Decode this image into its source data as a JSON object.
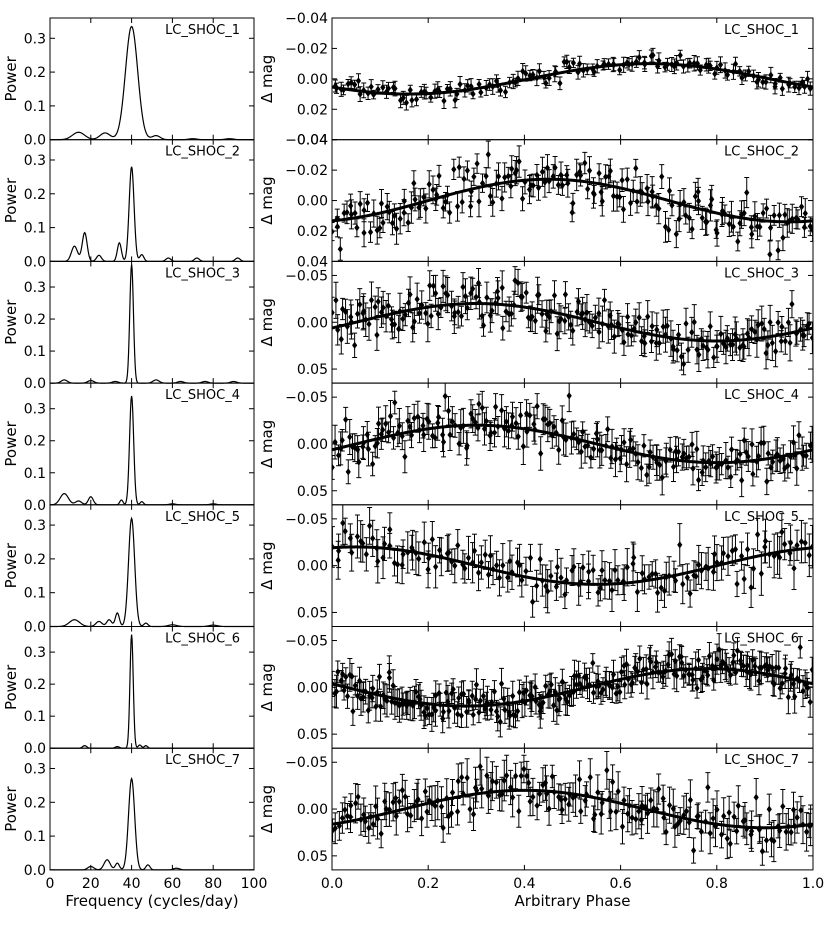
{
  "chart_data": [
    {
      "type": "line",
      "panel": "LC_SHOC_1",
      "xlabel": "",
      "ylabel": "Power",
      "xlim": [
        0,
        100
      ],
      "ylim": [
        0,
        0.36
      ],
      "yticks": [
        "0.0",
        "0.1",
        "0.2",
        "0.3"
      ],
      "peaks": [
        [
          40.0,
          0.335,
          3.0
        ],
        [
          14.0,
          0.022,
          3.0
        ],
        [
          27.0,
          0.02,
          2.5
        ],
        [
          52.0,
          0.012,
          2.0
        ],
        [
          70.0,
          0.003,
          2.0
        ],
        [
          88.0,
          0.003,
          2.0
        ]
      ]
    },
    {
      "type": "line",
      "panel": "LC_SHOC_2",
      "xlabel": "",
      "ylabel": "Power",
      "xlim": [
        0,
        100
      ],
      "ylim": [
        0,
        0.36
      ],
      "yticks": [
        "0.0",
        "0.1",
        "0.2",
        "0.3"
      ],
      "peaks": [
        [
          40.0,
          0.28,
          1.2
        ],
        [
          12.0,
          0.045,
          1.5
        ],
        [
          17.0,
          0.085,
          1.2
        ],
        [
          24.0,
          0.018,
          1.2
        ],
        [
          34.0,
          0.055,
          1.0
        ],
        [
          45.0,
          0.02,
          1.0
        ],
        [
          58.0,
          0.01,
          1.2
        ],
        [
          72.0,
          0.01,
          1.2
        ],
        [
          92.0,
          0.01,
          1.2
        ]
      ]
    },
    {
      "type": "line",
      "panel": "LC_SHOC_3",
      "xlabel": "",
      "ylabel": "Power",
      "xlim": [
        0,
        100
      ],
      "ylim": [
        0,
        0.38
      ],
      "yticks": [
        "0.0",
        "0.1",
        "0.2",
        "0.3"
      ],
      "peaks": [
        [
          40.0,
          0.37,
          0.9
        ],
        [
          7.0,
          0.01,
          1.5
        ],
        [
          20.0,
          0.008,
          1.5
        ],
        [
          32.0,
          0.005,
          1.5
        ],
        [
          52.0,
          0.01,
          1.5
        ],
        [
          64.0,
          0.005,
          1.5
        ],
        [
          76.0,
          0.005,
          1.5
        ],
        [
          90.0,
          0.005,
          1.5
        ]
      ]
    },
    {
      "type": "line",
      "panel": "LC_SHOC_4",
      "xlabel": "",
      "ylabel": "Power",
      "xlim": [
        0,
        100
      ],
      "ylim": [
        0,
        0.38
      ],
      "yticks": [
        "0.0",
        "0.1",
        "0.2",
        "0.3"
      ],
      "peaks": [
        [
          40.0,
          0.34,
          1.0
        ],
        [
          7.0,
          0.035,
          2.0
        ],
        [
          14.0,
          0.012,
          1.5
        ],
        [
          20.0,
          0.025,
          1.2
        ],
        [
          35.0,
          0.015,
          0.8
        ],
        [
          45.0,
          0.01,
          0.8
        ],
        [
          60.0,
          0.003,
          1.5
        ],
        [
          80.0,
          0.003,
          1.5
        ]
      ]
    },
    {
      "type": "line",
      "panel": "LC_SHOC_5",
      "xlabel": "",
      "ylabel": "Power",
      "xlim": [
        0,
        100
      ],
      "ylim": [
        0,
        0.36
      ],
      "yticks": [
        "0.0",
        "0.1",
        "0.2",
        "0.3"
      ],
      "peaks": [
        [
          40.0,
          0.32,
          1.5
        ],
        [
          12.0,
          0.02,
          2.5
        ],
        [
          24.0,
          0.015,
          1.5
        ],
        [
          29.0,
          0.02,
          1.2
        ],
        [
          33.0,
          0.04,
          1.0
        ],
        [
          47.0,
          0.01,
          1.0
        ],
        [
          60.0,
          0.005,
          2.0
        ],
        [
          80.0,
          0.004,
          2.0
        ]
      ]
    },
    {
      "type": "line",
      "panel": "LC_SHOC_6",
      "xlabel": "",
      "ylabel": "Power",
      "xlim": [
        0,
        100
      ],
      "ylim": [
        0,
        0.38
      ],
      "yticks": [
        "0.0",
        "0.1",
        "0.2",
        "0.3"
      ],
      "peaks": [
        [
          40.0,
          0.355,
          0.8
        ],
        [
          17.0,
          0.008,
          1.0
        ],
        [
          33.0,
          0.005,
          1.0
        ],
        [
          44.0,
          0.01,
          0.8
        ],
        [
          47.0,
          0.008,
          0.8
        ]
      ]
    },
    {
      "type": "line",
      "panel": "LC_SHOC_7",
      "xlabel": "Frequency (cycles/day)",
      "ylabel": "Power",
      "xlim": [
        0,
        100
      ],
      "ylim": [
        0,
        0.36
      ],
      "yticks": [
        "0.0",
        "0.1",
        "0.2",
        "0.3"
      ],
      "xticks": [
        "0",
        "20",
        "40",
        "60",
        "80",
        "100"
      ],
      "peaks": [
        [
          40.0,
          0.27,
          1.5
        ],
        [
          20.0,
          0.01,
          1.5
        ],
        [
          28.0,
          0.03,
          1.5
        ],
        [
          33.0,
          0.02,
          1.0
        ],
        [
          48.0,
          0.015,
          1.0
        ],
        [
          62.0,
          0.005,
          1.5
        ]
      ]
    },
    {
      "type": "scatter",
      "panel": "LC_SHOC_1",
      "xlabel": "",
      "ylabel": "Δ mag",
      "xlim": [
        0,
        1
      ],
      "ylim": [
        0.04,
        -0.04
      ],
      "yticks": [
        "−0.04",
        "−0.02",
        "0.00",
        "0.02",
        "0.04"
      ],
      "model": {
        "amplitude": 0.01,
        "peak_phase": 0.66
      },
      "n_points": 140,
      "scatter": 0.003,
      "error": 0.004
    },
    {
      "type": "scatter",
      "panel": "LC_SHOC_2",
      "xlabel": "",
      "ylabel": "Δ mag",
      "xlim": [
        0,
        1
      ],
      "ylim": [
        0.04,
        -0.04
      ],
      "yticks": [
        "−0.04",
        "−0.02",
        "0.00",
        "0.02",
        "0.04"
      ],
      "model": {
        "amplitude": 0.014,
        "peak_phase": 0.45
      },
      "n_points": 180,
      "scatter": 0.008,
      "error": 0.008
    },
    {
      "type": "scatter",
      "panel": "LC_SHOC_3",
      "xlabel": "",
      "ylabel": "Δ mag",
      "xlim": [
        0,
        1
      ],
      "ylim": [
        0.065,
        -0.065
      ],
      "yticks": [
        "−0.05",
        "0.00",
        "0.05"
      ],
      "model": {
        "amplitude": 0.02,
        "peak_phase": 0.3
      },
      "n_points": 200,
      "scatter": 0.012,
      "error": 0.015
    },
    {
      "type": "scatter",
      "panel": "LC_SHOC_4",
      "xlabel": "",
      "ylabel": "Δ mag",
      "xlim": [
        0,
        1
      ],
      "ylim": [
        0.065,
        -0.065
      ],
      "yticks": [
        "−0.05",
        "0.00",
        "0.05"
      ],
      "model": {
        "amplitude": 0.02,
        "peak_phase": 0.3
      },
      "n_points": 200,
      "scatter": 0.012,
      "error": 0.015
    },
    {
      "type": "scatter",
      "panel": "LC_SHOC_5",
      "xlabel": "",
      "ylabel": "Δ mag",
      "xlim": [
        0,
        1
      ],
      "ylim": [
        0.065,
        -0.065
      ],
      "yticks": [
        "−0.05",
        "0.00",
        "0.05"
      ],
      "model": {
        "amplitude": 0.02,
        "peak_phase": 0.05
      },
      "n_points": 150,
      "scatter": 0.012,
      "error": 0.018
    },
    {
      "type": "scatter",
      "panel": "LC_SHOC_6",
      "xlabel": "",
      "ylabel": "Δ mag",
      "xlim": [
        0,
        1
      ],
      "ylim": [
        0.065,
        -0.065
      ],
      "yticks": [
        "−0.05",
        "0.00",
        "0.05"
      ],
      "model": {
        "amplitude": 0.02,
        "peak_phase": 0.78
      },
      "n_points": 260,
      "scatter": 0.01,
      "error": 0.014
    },
    {
      "type": "scatter",
      "panel": "LC_SHOC_7",
      "xlabel": "Arbitrary Phase",
      "ylabel": "Δ mag",
      "xlim": [
        0,
        1
      ],
      "ylim": [
        0.065,
        -0.065
      ],
      "yticks": [
        "−0.05",
        "0.00",
        "0.05"
      ],
      "xticks": [
        "0.0",
        "0.2",
        "0.4",
        "0.6",
        "0.8",
        "1.0"
      ],
      "model": {
        "amplitude": 0.02,
        "peak_phase": 0.4
      },
      "n_points": 180,
      "scatter": 0.013,
      "error": 0.017
    }
  ]
}
